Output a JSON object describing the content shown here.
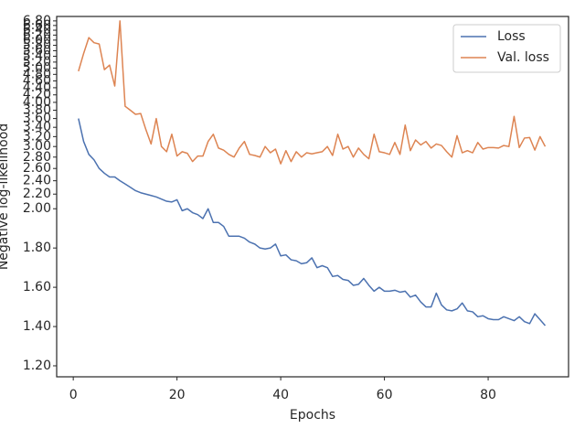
{
  "chart_data": {
    "type": "line",
    "xlabel": "Epochs",
    "ylabel": "Negative log-likelihood",
    "x": [
      1,
      2,
      3,
      4,
      5,
      6,
      7,
      8,
      9,
      10,
      11,
      12,
      13,
      14,
      15,
      16,
      17,
      18,
      19,
      20,
      21,
      22,
      23,
      24,
      25,
      26,
      27,
      28,
      29,
      30,
      31,
      32,
      33,
      34,
      35,
      36,
      37,
      38,
      39,
      40,
      41,
      42,
      43,
      44,
      45,
      46,
      47,
      48,
      49,
      50,
      51,
      52,
      53,
      54,
      55,
      56,
      57,
      58,
      59,
      60,
      61,
      62,
      63,
      64,
      65,
      66,
      67,
      68,
      69,
      70,
      71,
      72,
      73,
      74,
      75,
      76,
      77,
      78,
      79,
      80,
      81,
      82,
      83,
      84,
      85,
      86,
      87,
      88,
      89,
      90,
      91
    ],
    "series": [
      {
        "name": "Loss",
        "color": "#4c72b0",
        "values": [
          3.6,
          3.1,
          2.85,
          2.75,
          2.6,
          2.52,
          2.46,
          2.46,
          2.4,
          2.35,
          2.3,
          2.25,
          2.22,
          2.2,
          2.18,
          2.16,
          2.13,
          2.1,
          2.09,
          2.12,
          1.99,
          2.0,
          1.98,
          1.97,
          1.95,
          2.0,
          1.93,
          1.93,
          1.91,
          1.86,
          1.86,
          1.86,
          1.85,
          1.83,
          1.82,
          1.8,
          1.795,
          1.8,
          1.82,
          1.76,
          1.765,
          1.74,
          1.735,
          1.72,
          1.725,
          1.75,
          1.7,
          1.71,
          1.7,
          1.655,
          1.66,
          1.64,
          1.635,
          1.61,
          1.615,
          1.645,
          1.61,
          1.58,
          1.6,
          1.58,
          1.58,
          1.585,
          1.575,
          1.58,
          1.55,
          1.56,
          1.525,
          1.5,
          1.5,
          1.57,
          1.51,
          1.485,
          1.48,
          1.49,
          1.52,
          1.48,
          1.475,
          1.45,
          1.455,
          1.44,
          1.435,
          1.435,
          1.45,
          1.44,
          1.43,
          1.45,
          1.425,
          1.415,
          1.465,
          1.435,
          1.405
        ]
      },
      {
        "name": "Val. loss",
        "color": "#dd8452",
        "values": [
          4.9,
          5.5,
          6.1,
          5.9,
          5.85,
          4.95,
          5.1,
          4.45,
          6.8,
          3.9,
          3.8,
          3.7,
          3.72,
          3.35,
          3.05,
          3.6,
          3.0,
          2.9,
          3.25,
          2.82,
          2.9,
          2.87,
          2.72,
          2.82,
          2.82,
          3.1,
          3.25,
          2.97,
          2.93,
          2.85,
          2.8,
          2.97,
          3.1,
          2.85,
          2.83,
          2.8,
          3.0,
          2.88,
          2.95,
          2.68,
          2.92,
          2.72,
          2.9,
          2.8,
          2.88,
          2.86,
          2.88,
          2.9,
          3.0,
          2.83,
          3.25,
          2.95,
          3.0,
          2.8,
          2.97,
          2.85,
          2.77,
          3.25,
          2.9,
          2.88,
          2.85,
          3.08,
          2.85,
          3.45,
          2.92,
          3.13,
          3.03,
          3.1,
          2.97,
          3.05,
          3.02,
          2.9,
          2.8,
          3.22,
          2.88,
          2.92,
          2.88,
          3.08,
          2.95,
          2.98,
          2.98,
          2.97,
          3.02,
          3.0,
          3.65,
          2.98,
          3.17,
          3.18,
          2.93,
          3.2,
          3.0
        ]
      }
    ],
    "xlim": [
      -3.2,
      95.5
    ],
    "xticks": [
      0,
      20,
      40,
      60,
      80
    ],
    "yscale": "symlog",
    "linthresh": 2,
    "linscale": 1,
    "ylim": [
      1.144,
      7.0
    ],
    "yticks": [
      {
        "value": 1.2,
        "label": "1.20"
      },
      {
        "value": 1.4,
        "label": "1.40"
      },
      {
        "value": 1.6,
        "label": "1.60"
      },
      {
        "value": 1.8,
        "label": "1.80"
      },
      {
        "value": 2.0,
        "label": "2.00"
      },
      {
        "value": 2.2,
        "label": "2.20"
      },
      {
        "value": 2.4,
        "label": "2.40"
      },
      {
        "value": 2.6,
        "label": "2.60"
      },
      {
        "value": 2.8,
        "label": "2.80"
      },
      {
        "value": 3.0,
        "label": "3.00"
      },
      {
        "value": 3.2,
        "label": "3.20"
      },
      {
        "value": 3.4,
        "label": "3.40"
      },
      {
        "value": 3.6,
        "label": "3.60"
      },
      {
        "value": 3.8,
        "label": "3.80"
      },
      {
        "value": 4.0,
        "label": "4.00"
      },
      {
        "value": 4.2,
        "label": "4.20"
      },
      {
        "value": 4.4,
        "label": "4.40"
      },
      {
        "value": 4.6,
        "label": "4.60"
      },
      {
        "value": 4.8,
        "label": "4.80"
      },
      {
        "value": 5.0,
        "label": "5.00"
      },
      {
        "value": 5.2,
        "label": "5.20"
      },
      {
        "value": 5.4,
        "label": "5.40"
      },
      {
        "value": 5.6,
        "label": "5.60"
      },
      {
        "value": 5.8,
        "label": "5.80"
      },
      {
        "value": 6.0,
        "label": "6.00"
      },
      {
        "value": 6.2,
        "label": "6.20"
      },
      {
        "value": 6.4,
        "label": "6.40"
      },
      {
        "value": 6.6,
        "label": "6.60"
      },
      {
        "value": 6.8,
        "label": "6.80"
      }
    ],
    "legend": "upper right"
  }
}
